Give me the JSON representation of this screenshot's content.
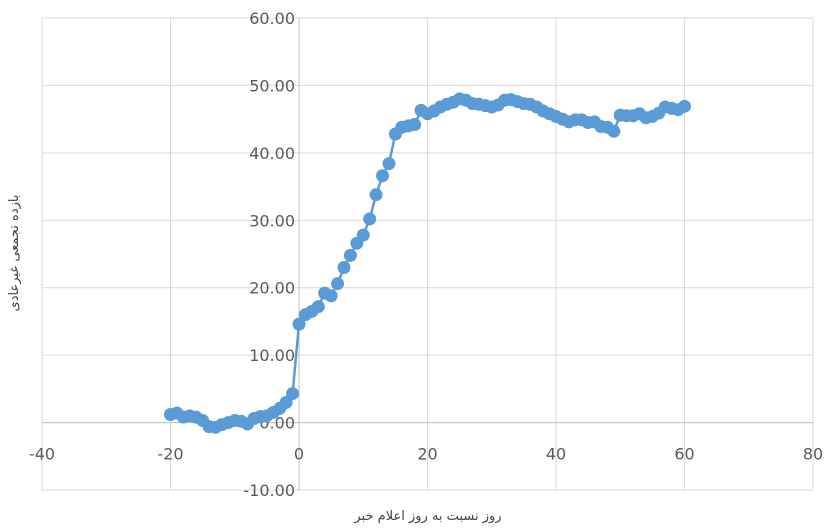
{
  "chart_data": {
    "type": "scatter",
    "xlabel": "روز نسبت به روز اعلام خبر",
    "ylabel": "بازده تجمعی غیرعادی",
    "xlim": [
      -40,
      80
    ],
    "ylim": [
      -10,
      60
    ],
    "x_ticks": [
      -40,
      -20,
      0,
      20,
      40,
      60,
      80
    ],
    "y_ticks": [
      "-10.00",
      "0.00",
      "10.00",
      "20.00",
      "30.00",
      "40.00",
      "50.00",
      "60.00"
    ],
    "grid": true,
    "legend": "none",
    "colors": {
      "series": "#5B9BD5",
      "grid": "#d9d9d9",
      "axis": "#bfbfbf",
      "tick_text": "#595959"
    },
    "series": [
      {
        "marker": "circle",
        "line": true,
        "x": [
          -20,
          -19,
          -18,
          -17,
          -16,
          -15,
          -14,
          -13,
          -12,
          -11,
          -10,
          -9,
          -8,
          -7,
          -6,
          -5,
          -4,
          -3,
          -2,
          -1,
          0,
          1,
          2,
          3,
          4,
          5,
          6,
          7,
          8,
          9,
          10,
          11,
          12,
          13,
          14,
          15,
          16,
          17,
          18,
          19,
          20,
          21,
          22,
          23,
          24,
          25,
          26,
          27,
          28,
          29,
          30,
          31,
          32,
          33,
          34,
          35,
          36,
          37,
          38,
          39,
          40,
          41,
          42,
          43,
          44,
          45,
          46,
          47,
          48,
          49,
          50,
          51,
          52,
          53,
          54,
          55,
          56,
          57,
          58,
          59,
          60
        ],
        "y": [
          1.2,
          1.4,
          0.8,
          1.0,
          0.8,
          0.3,
          -0.6,
          -0.7,
          -0.3,
          0.0,
          0.3,
          0.2,
          -0.2,
          0.6,
          0.9,
          1.0,
          1.5,
          2.1,
          3.0,
          4.3,
          14.6,
          16.0,
          16.5,
          17.2,
          19.2,
          18.8,
          20.6,
          23.0,
          24.8,
          26.6,
          27.8,
          30.2,
          33.8,
          36.6,
          38.4,
          42.8,
          43.8,
          44.0,
          44.2,
          46.3,
          45.8,
          46.2,
          46.8,
          47.2,
          47.5,
          48.0,
          47.8,
          47.3,
          47.2,
          47.0,
          46.8,
          47.1,
          47.8,
          47.9,
          47.6,
          47.3,
          47.2,
          46.8,
          46.2,
          45.8,
          45.4,
          45.0,
          44.6,
          44.9,
          44.9,
          44.5,
          44.6,
          43.9,
          43.8,
          43.2,
          45.6,
          45.5,
          45.5,
          45.8,
          45.2,
          45.4,
          45.9,
          46.8,
          46.6,
          46.4,
          46.9
        ]
      }
    ]
  }
}
